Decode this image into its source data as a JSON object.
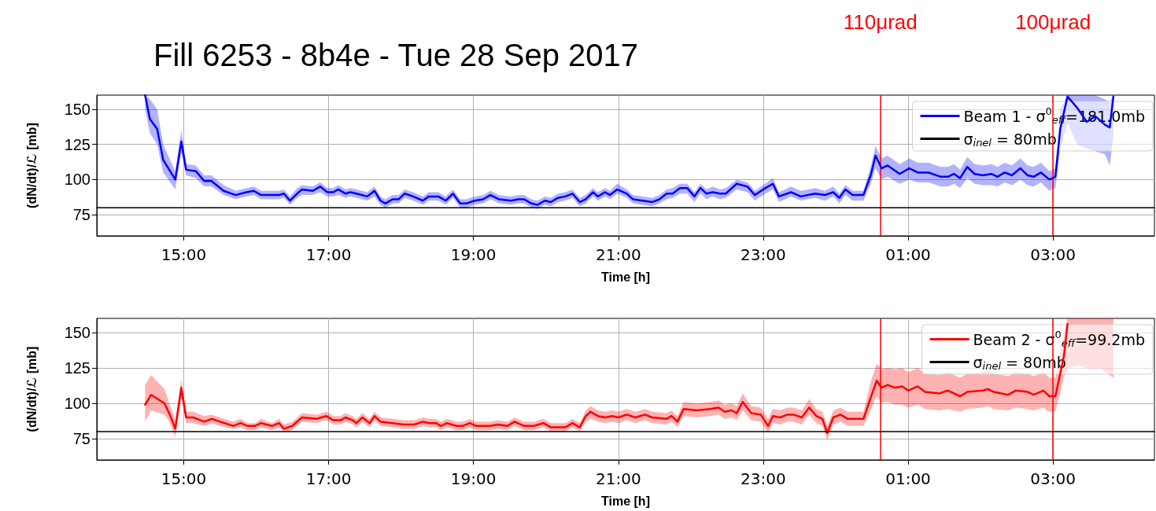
{
  "chart_data": [
    {
      "type": "line",
      "title": "Fill 6253 - 8b4e - Tue 28 Sep 2017",
      "xlabel": "Time [h]",
      "ylabel": "(dN/dt)/ℒ [mb]",
      "xlim": [
        "2017-09-28T13:48",
        "2017-09-29T04:24"
      ],
      "xticks": [
        {
          "value": "2017-09-28T15:00",
          "label": "15:00"
        },
        {
          "value": "2017-09-28T17:00",
          "label": "17:00"
        },
        {
          "value": "2017-09-28T19:00",
          "label": "19:00"
        },
        {
          "value": "2017-09-28T21:00",
          "label": "21:00"
        },
        {
          "value": "2017-09-28T23:00",
          "label": "23:00"
        },
        {
          "value": "2017-09-29T01:00",
          "label": "01:00"
        },
        {
          "value": "2017-09-29T03:00",
          "label": "03:00"
        }
      ],
      "ylim": [
        60,
        160
      ],
      "yticks": [
        75,
        100,
        125,
        150
      ],
      "grid": true,
      "legend": "top right",
      "series": [
        {
          "name": "Beam 1 - σ$^{0}$$_{eff}$=181.0mb",
          "color": "#0000ff",
          "x": [
            "2017-09-28T14:28",
            "2017-09-28T14:32",
            "2017-09-28T14:38",
            "2017-09-28T14:43",
            "2017-09-28T14:53",
            "2017-09-28T14:58",
            "2017-09-28T15:02",
            "2017-09-28T15:10",
            "2017-09-28T15:17",
            "2017-09-28T15:23",
            "2017-09-28T15:33",
            "2017-09-28T15:43",
            "2017-09-28T15:52",
            "2017-09-28T15:58",
            "2017-09-28T16:04",
            "2017-09-28T16:19",
            "2017-09-28T16:23",
            "2017-09-28T16:28",
            "2017-09-28T16:34",
            "2017-09-28T16:38",
            "2017-09-28T16:47",
            "2017-09-28T16:53",
            "2017-09-28T16:59",
            "2017-09-28T17:04",
            "2017-09-28T17:08",
            "2017-09-28T17:14",
            "2017-09-28T17:18",
            "2017-09-28T17:23",
            "2017-09-28T17:32",
            "2017-09-28T17:38",
            "2017-09-28T17:43",
            "2017-09-28T17:47",
            "2017-09-28T17:53",
            "2017-09-28T17:58",
            "2017-09-28T18:03",
            "2017-09-28T18:10",
            "2017-09-28T18:18",
            "2017-09-28T18:23",
            "2017-09-28T18:31",
            "2017-09-28T18:37",
            "2017-09-28T18:43",
            "2017-09-28T18:49",
            "2017-09-28T18:54",
            "2017-09-28T19:01",
            "2017-09-28T19:08",
            "2017-09-28T19:14",
            "2017-09-28T19:21",
            "2017-09-28T19:31",
            "2017-09-28T19:37",
            "2017-09-28T19:42",
            "2017-09-28T19:48",
            "2017-09-28T19:53",
            "2017-09-28T19:59",
            "2017-09-28T20:04",
            "2017-09-28T20:10",
            "2017-09-28T20:16",
            "2017-09-28T20:22",
            "2017-09-28T20:28",
            "2017-09-28T20:33",
            "2017-09-28T20:39",
            "2017-09-28T20:43",
            "2017-09-28T20:49",
            "2017-09-28T20:53",
            "2017-09-28T20:59",
            "2017-09-28T21:07",
            "2017-09-28T21:12",
            "2017-09-28T21:28",
            "2017-09-28T21:34",
            "2017-09-28T21:40",
            "2017-09-28T21:45",
            "2017-09-28T21:51",
            "2017-09-28T21:57",
            "2017-09-28T22:03",
            "2017-09-28T22:08",
            "2017-09-28T22:13",
            "2017-09-28T22:18",
            "2017-09-28T22:24",
            "2017-09-28T22:29",
            "2017-09-28T22:38",
            "2017-09-28T22:47",
            "2017-09-28T22:53",
            "2017-09-28T23:00",
            "2017-09-28T23:08",
            "2017-09-28T23:13",
            "2017-09-28T23:23",
            "2017-09-28T23:31",
            "2017-09-28T23:43",
            "2017-09-28T23:51",
            "2017-09-28T23:58",
            "2017-09-29T00:03",
            "2017-09-29T00:08",
            "2017-09-29T00:14",
            "2017-09-29T00:23",
            "2017-09-29T00:29",
            "2017-09-29T00:33",
            "2017-09-29T00:38",
            "2017-09-29T00:43",
            "2017-09-29T00:53",
            "2017-09-29T01:01",
            "2017-09-29T01:08",
            "2017-09-29T01:17",
            "2017-09-29T01:27",
            "2017-09-29T01:33",
            "2017-09-29T01:38",
            "2017-09-29T01:43",
            "2017-09-29T01:49",
            "2017-09-29T01:55",
            "2017-09-29T02:02",
            "2017-09-29T02:09",
            "2017-09-29T02:14",
            "2017-09-29T02:20",
            "2017-09-29T02:26",
            "2017-09-29T02:33",
            "2017-09-29T02:39",
            "2017-09-29T02:44",
            "2017-09-29T02:50",
            "2017-09-29T02:57",
            "2017-09-29T03:02",
            "2017-09-29T03:06",
            "2017-09-29T03:12",
            "2017-09-29T03:20",
            "2017-09-29T03:28",
            "2017-09-29T03:35",
            "2017-09-29T03:43",
            "2017-09-29T03:47",
            "2017-09-29T03:50"
          ],
          "values": [
            160,
            143,
            136,
            114,
            100,
            127,
            107,
            106,
            99,
            99,
            92,
            89,
            91,
            92,
            89,
            89,
            90,
            85,
            90,
            93,
            92,
            95,
            91,
            91,
            93,
            90,
            91,
            90,
            88,
            92,
            85,
            83,
            86,
            86,
            90,
            88,
            85,
            88,
            88,
            85,
            90,
            83,
            83,
            85,
            86,
            89,
            86,
            85,
            86,
            86,
            83,
            82,
            85,
            84,
            87,
            88,
            90,
            84,
            86,
            91,
            88,
            91,
            89,
            93,
            90,
            86,
            84,
            86,
            90,
            90,
            94,
            94,
            88,
            94,
            90,
            91,
            90,
            90,
            97,
            95,
            89,
            93,
            97,
            88,
            91,
            88,
            90,
            89,
            91,
            87,
            93,
            89,
            89,
            103,
            117,
            108,
            110,
            104,
            108,
            105,
            105,
            102,
            102,
            104,
            101,
            109,
            104,
            103,
            104,
            102,
            105,
            103,
            108,
            103,
            102,
            105,
            100,
            102,
            136,
            159,
            151,
            141,
            145,
            139,
            137,
            159
          ],
          "lower": [
            150,
            133,
            125,
            105,
            93,
            119,
            103,
            101,
            95,
            95,
            89,
            86,
            88,
            89,
            86,
            86,
            87,
            82,
            87,
            89,
            89,
            91,
            88,
            88,
            89,
            87,
            88,
            87,
            85,
            88,
            82,
            80,
            83,
            83,
            87,
            85,
            82,
            85,
            85,
            82,
            87,
            80,
            80,
            82,
            83,
            86,
            83,
            82,
            83,
            83,
            80,
            79,
            82,
            81,
            84,
            85,
            87,
            81,
            83,
            88,
            85,
            88,
            86,
            90,
            87,
            83,
            81,
            83,
            86,
            87,
            90,
            90,
            84,
            90,
            86,
            88,
            86,
            87,
            93,
            91,
            85,
            89,
            93,
            84,
            88,
            85,
            87,
            85,
            88,
            83,
            89,
            85,
            85,
            97,
            108,
            100,
            102,
            97,
            100,
            98,
            98,
            95,
            95,
            97,
            94,
            101,
            97,
            96,
            96,
            95,
            98,
            96,
            100,
            96,
            95,
            98,
            92,
            94,
            122,
            140,
            125,
            122,
            120,
            118,
            110,
            130
          ],
          "upper": [
            160,
            157,
            150,
            125,
            106,
            135,
            111,
            110,
            103,
            103,
            96,
            92,
            94,
            95,
            92,
            92,
            93,
            88,
            94,
            96,
            95,
            98,
            94,
            94,
            96,
            93,
            94,
            93,
            91,
            95,
            88,
            86,
            89,
            89,
            93,
            91,
            88,
            91,
            91,
            88,
            93,
            86,
            86,
            88,
            89,
            92,
            89,
            88,
            89,
            89,
            86,
            85,
            88,
            87,
            90,
            91,
            93,
            87,
            89,
            94,
            91,
            94,
            92,
            97,
            93,
            89,
            87,
            89,
            93,
            94,
            97,
            97,
            91,
            97,
            93,
            95,
            93,
            94,
            100,
            98,
            92,
            96,
            101,
            91,
            95,
            92,
            94,
            92,
            95,
            90,
            96,
            92,
            92,
            109,
            124,
            115,
            117,
            111,
            115,
            112,
            112,
            109,
            109,
            111,
            107,
            116,
            111,
            110,
            111,
            109,
            112,
            110,
            115,
            110,
            109,
            112,
            106,
            108,
            150,
            160,
            160,
            160,
            160,
            157,
            155,
            160
          ]
        },
        {
          "name": "σ$_{inel}$ = 80mb",
          "color": "#000000",
          "x": [
            "2017-09-28T13:48",
            "2017-09-29T04:24"
          ],
          "values": [
            80,
            80
          ]
        }
      ],
      "ref_lines": [
        {
          "axis": "x",
          "value": "2017-09-29T00:37",
          "label": "110μrad",
          "color": "#ff0000"
        },
        {
          "axis": "x",
          "value": "2017-09-29T03:00",
          "label": "100μrad",
          "color": "#ff0000"
        }
      ]
    },
    {
      "type": "line",
      "xlabel": "Time [h]",
      "ylabel": "(dN/dt)/ℒ [mb]",
      "xlim": [
        "2017-09-28T13:48",
        "2017-09-29T04:24"
      ],
      "xticks": [
        {
          "value": "2017-09-28T15:00",
          "label": "15:00"
        },
        {
          "value": "2017-09-28T17:00",
          "label": "17:00"
        },
        {
          "value": "2017-09-28T19:00",
          "label": "19:00"
        },
        {
          "value": "2017-09-28T21:00",
          "label": "21:00"
        },
        {
          "value": "2017-09-28T23:00",
          "label": "23:00"
        },
        {
          "value": "2017-09-29T01:00",
          "label": "01:00"
        },
        {
          "value": "2017-09-29T03:00",
          "label": "03:00"
        }
      ],
      "ylim": [
        60,
        160
      ],
      "yticks": [
        75,
        100,
        125,
        150
      ],
      "grid": true,
      "legend": "top right",
      "series": [
        {
          "name": "Beam 2 - σ$^{0}$$_{eff}$=99.2mb",
          "color": "#ff0000",
          "x": [
            "2017-09-28T14:28",
            "2017-09-28T14:33",
            "2017-09-28T14:44",
            "2017-09-28T14:48",
            "2017-09-28T14:53",
            "2017-09-28T14:58",
            "2017-09-28T15:02",
            "2017-09-28T15:08",
            "2017-09-28T15:17",
            "2017-09-28T15:23",
            "2017-09-28T15:30",
            "2017-09-28T15:41",
            "2017-09-28T15:47",
            "2017-09-28T15:53",
            "2017-09-28T15:59",
            "2017-09-28T16:04",
            "2017-09-28T16:13",
            "2017-09-28T16:19",
            "2017-09-28T16:23",
            "2017-09-28T16:30",
            "2017-09-28T16:38",
            "2017-09-28T16:50",
            "2017-09-28T16:58",
            "2017-09-28T17:04",
            "2017-09-28T17:10",
            "2017-09-28T17:14",
            "2017-09-28T17:20",
            "2017-09-28T17:23",
            "2017-09-28T17:28",
            "2017-09-28T17:34",
            "2017-09-28T17:38",
            "2017-09-28T17:43",
            "2017-09-28T17:53",
            "2017-09-28T18:02",
            "2017-09-28T18:11",
            "2017-09-28T18:18",
            "2017-09-28T18:23",
            "2017-09-28T18:29",
            "2017-09-28T18:33",
            "2017-09-28T18:38",
            "2017-09-28T18:46",
            "2017-09-28T18:51",
            "2017-09-28T18:57",
            "2017-09-28T19:02",
            "2017-09-28T19:14",
            "2017-09-28T19:20",
            "2017-09-28T19:28",
            "2017-09-28T19:34",
            "2017-09-28T19:42",
            "2017-09-28T19:50",
            "2017-09-28T19:58",
            "2017-09-28T20:04",
            "2017-09-28T20:16",
            "2017-09-28T20:22",
            "2017-09-28T20:28",
            "2017-09-28T20:33",
            "2017-09-28T20:37",
            "2017-09-28T20:43",
            "2017-09-28T20:49",
            "2017-09-28T20:55",
            "2017-09-28T21:00",
            "2017-09-28T21:07",
            "2017-09-28T21:14",
            "2017-09-28T21:22",
            "2017-09-28T21:28",
            "2017-09-28T21:40",
            "2017-09-28T21:44",
            "2017-09-28T21:49",
            "2017-09-28T21:54",
            "2017-09-28T22:05",
            "2017-09-28T22:16",
            "2017-09-28T22:23",
            "2017-09-28T22:28",
            "2017-09-28T22:34",
            "2017-09-28T22:38",
            "2017-09-28T22:43",
            "2017-09-28T22:50",
            "2017-09-28T22:58",
            "2017-09-28T23:04",
            "2017-09-28T23:08",
            "2017-09-28T23:14",
            "2017-09-28T23:20",
            "2017-09-28T23:25",
            "2017-09-28T23:32",
            "2017-09-28T23:38",
            "2017-09-28T23:44",
            "2017-09-28T23:49",
            "2017-09-28T23:53",
            "2017-09-28T23:58",
            "2017-09-29T00:04",
            "2017-09-29T00:10",
            "2017-09-29T00:17",
            "2017-09-29T00:23",
            "2017-09-29T00:29",
            "2017-09-29T00:34",
            "2017-09-29T00:38",
            "2017-09-29T00:43",
            "2017-09-29T00:49",
            "2017-09-29T00:55",
            "2017-09-29T01:00",
            "2017-09-29T01:08",
            "2017-09-29T01:14",
            "2017-09-29T01:26",
            "2017-09-29T01:33",
            "2017-09-29T01:43",
            "2017-09-29T01:49",
            "2017-09-29T02:02",
            "2017-09-29T02:06",
            "2017-09-29T02:11",
            "2017-09-29T02:23",
            "2017-09-29T02:29",
            "2017-09-29T02:39",
            "2017-09-29T02:44",
            "2017-09-29T02:52",
            "2017-09-29T02:57",
            "2017-09-29T03:02",
            "2017-09-29T03:09",
            "2017-09-29T03:12",
            "2017-09-29T03:21",
            "2017-09-29T03:30",
            "2017-09-29T03:39",
            "2017-09-29T03:45",
            "2017-09-29T03:50"
          ],
          "values": [
            99,
            106,
            100,
            93,
            82,
            111,
            90,
            90,
            87,
            89,
            87,
            84,
            86,
            84,
            84,
            86,
            84,
            86,
            82,
            84,
            90,
            89,
            91,
            88,
            88,
            90,
            88,
            86,
            90,
            86,
            91,
            87,
            86,
            85,
            85,
            87,
            86,
            86,
            84,
            86,
            84,
            84,
            86,
            84,
            84,
            85,
            84,
            87,
            84,
            84,
            86,
            83,
            83,
            86,
            83,
            91,
            94,
            91,
            90,
            91,
            90,
            92,
            90,
            92,
            90,
            89,
            91,
            87,
            96,
            95,
            96,
            97,
            94,
            95,
            93,
            101,
            93,
            92,
            84,
            91,
            90,
            92,
            92,
            90,
            97,
            91,
            89,
            79,
            90,
            92,
            89,
            89,
            89,
            104,
            116,
            111,
            113,
            111,
            112,
            109,
            112,
            108,
            107,
            109,
            105,
            108,
            109,
            110,
            108,
            106,
            109,
            108,
            106,
            109,
            105,
            105,
            133,
            156,
            null,
            null,
            null,
            null,
            null
          ],
          "lower": [
            87,
            95,
            92,
            87,
            76,
            104,
            86,
            86,
            84,
            86,
            84,
            82,
            83,
            81,
            81,
            83,
            81,
            83,
            80,
            81,
            87,
            86,
            88,
            85,
            85,
            87,
            85,
            83,
            87,
            83,
            88,
            84,
            83,
            82,
            82,
            84,
            83,
            83,
            81,
            83,
            81,
            81,
            83,
            81,
            81,
            82,
            81,
            84,
            81,
            81,
            83,
            80,
            80,
            83,
            80,
            87,
            89,
            87,
            86,
            87,
            86,
            88,
            86,
            88,
            86,
            85,
            87,
            83,
            91,
            90,
            91,
            92,
            89,
            90,
            88,
            95,
            88,
            87,
            79,
            86,
            85,
            87,
            87,
            85,
            92,
            86,
            84,
            74,
            85,
            87,
            84,
            84,
            84,
            95,
            105,
            100,
            101,
            99,
            99,
            97,
            99,
            96,
            95,
            96,
            94,
            96,
            97,
            98,
            96,
            95,
            97,
            96,
            95,
            97,
            94,
            94,
            118,
            125,
            127,
            124,
            125,
            121,
            118
          ],
          "upper": [
            113,
            120,
            110,
            100,
            88,
            117,
            94,
            94,
            91,
            92,
            90,
            87,
            89,
            86,
            86,
            89,
            86,
            89,
            85,
            87,
            93,
            92,
            94,
            91,
            91,
            93,
            91,
            89,
            93,
            89,
            94,
            90,
            89,
            88,
            88,
            90,
            89,
            89,
            87,
            89,
            87,
            87,
            89,
            87,
            87,
            88,
            87,
            90,
            87,
            87,
            89,
            86,
            86,
            89,
            86,
            95,
            98,
            95,
            94,
            95,
            94,
            96,
            94,
            96,
            94,
            93,
            95,
            91,
            101,
            100,
            101,
            102,
            99,
            100,
            98,
            107,
            98,
            97,
            89,
            96,
            95,
            97,
            97,
            95,
            103,
            96,
            94,
            84,
            95,
            97,
            94,
            94,
            94,
            115,
            128,
            124,
            125,
            124,
            125,
            122,
            125,
            121,
            120,
            122,
            118,
            121,
            122,
            123,
            121,
            119,
            122,
            121,
            119,
            122,
            118,
            118,
            150,
            160,
            160,
            160,
            160,
            160,
            160
          ]
        },
        {
          "name": "σ$_{inel}$ = 80mb",
          "color": "#000000",
          "x": [
            "2017-09-28T13:48",
            "2017-09-29T04:24"
          ],
          "values": [
            80,
            80
          ]
        }
      ],
      "ref_lines": [
        {
          "axis": "x",
          "value": "2017-09-29T00:37",
          "color": "#ff0000"
        },
        {
          "axis": "x",
          "value": "2017-09-29T03:00",
          "color": "#ff0000"
        }
      ]
    }
  ]
}
